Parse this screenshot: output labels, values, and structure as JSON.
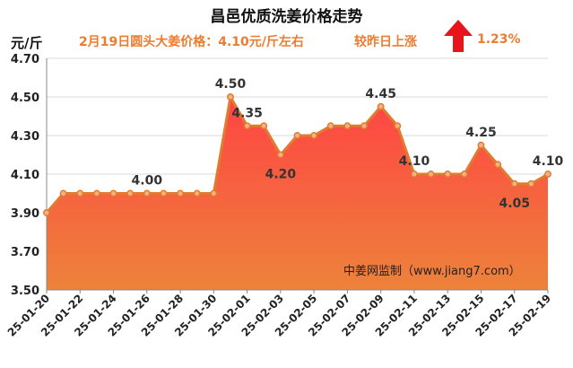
{
  "header": {
    "title": "昌邑优质洗姜价格走势",
    "unit": "元/斤",
    "price_line": "2月19日圆头大姜价格：4.10元/斤左右",
    "change_text": "较昨日上涨",
    "change_pct": "1.23%",
    "arrow_icon": "up-arrow-icon",
    "arrow_color": "#e8141b"
  },
  "watermark": "中姜网监制（www.jiang7.com）",
  "chart_data": {
    "type": "area",
    "x": [
      "25-01-20",
      "25-01-21",
      "25-01-22",
      "25-01-23",
      "25-01-24",
      "25-01-25",
      "25-01-26",
      "25-01-27",
      "25-01-28",
      "25-01-29",
      "25-01-30",
      "25-01-31",
      "25-02-01",
      "25-02-02",
      "25-02-03",
      "25-02-04",
      "25-02-05",
      "25-02-06",
      "25-02-07",
      "25-02-08",
      "25-02-09",
      "25-02-10",
      "25-02-11",
      "25-02-12",
      "25-02-13",
      "25-02-14",
      "25-02-15",
      "25-02-16",
      "25-02-17",
      "25-02-18",
      "25-02-19"
    ],
    "values": [
      3.9,
      4.0,
      4.0,
      4.0,
      4.0,
      4.0,
      4.0,
      4.0,
      4.0,
      4.0,
      4.0,
      4.5,
      4.35,
      4.35,
      4.2,
      4.3,
      4.3,
      4.35,
      4.35,
      4.35,
      4.45,
      4.35,
      4.1,
      4.1,
      4.1,
      4.1,
      4.25,
      4.15,
      4.05,
      4.05,
      4.1
    ],
    "x_tick_labels": [
      "25-01-20",
      "25-01-22",
      "25-01-24",
      "25-01-26",
      "25-01-28",
      "25-01-30",
      "25-02-01",
      "25-02-03",
      "25-02-05",
      "25-02-07",
      "25-02-09",
      "25-02-11",
      "25-02-13",
      "25-02-15",
      "25-02-17",
      "25-02-19"
    ],
    "y_ticks": [
      "3.50",
      "3.70",
      "3.90",
      "4.10",
      "4.30",
      "4.50",
      "4.70"
    ],
    "ylim": [
      3.5,
      4.7
    ],
    "grid": true,
    "point_labels": [
      {
        "index": 6,
        "text": "4.00"
      },
      {
        "index": 11,
        "text": "4.50"
      },
      {
        "index": 12,
        "text": "4.35"
      },
      {
        "index": 14,
        "text": "4.20"
      },
      {
        "index": 20,
        "text": "4.45"
      },
      {
        "index": 22,
        "text": "4.10"
      },
      {
        "index": 26,
        "text": "4.25"
      },
      {
        "index": 28,
        "text": "4.05"
      },
      {
        "index": 30,
        "text": "4.10"
      }
    ],
    "line_color": "#e07b30",
    "marker_fill": "#f4b183",
    "fill_top_color": "#ff3a3a",
    "fill_bottom_color": "#ec7c30"
  }
}
